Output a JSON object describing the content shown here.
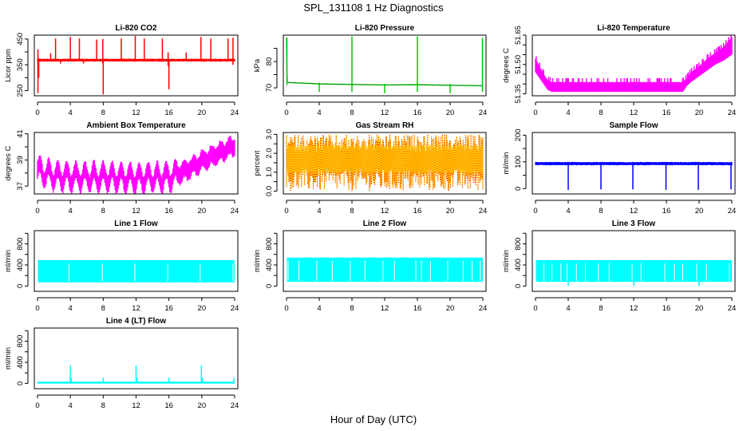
{
  "page": {
    "title": "SPL_131108  1 Hz Diagnostics",
    "xlabel": "Hour of Day (UTC)"
  },
  "chart_data": [
    {
      "id": "li820-co2",
      "type": "line",
      "title": "Li-820 CO2",
      "ylabel": "Licor ppm",
      "color": "#ff0000",
      "xlim": [
        0,
        24
      ],
      "xticks": [
        0,
        4,
        8,
        12,
        16,
        20,
        24
      ],
      "ylim": [
        230,
        465
      ],
      "yticks": [
        250,
        300,
        350,
        400,
        450
      ],
      "yticklabels": [
        "250",
        "",
        "350",
        "",
        "450"
      ],
      "baseline": 368,
      "band": [
        364,
        372
      ],
      "spikes": [
        {
          "x": 0.05,
          "lo": 240,
          "hi": 410
        },
        {
          "x": 0.15,
          "lo": 300,
          "hi": 375
        },
        {
          "x": 1.6,
          "lo": 368,
          "hi": 395
        },
        {
          "x": 2.2,
          "lo": 368,
          "hi": 452
        },
        {
          "x": 2.8,
          "lo": 355,
          "hi": 368
        },
        {
          "x": 4.0,
          "lo": 368,
          "hi": 458
        },
        {
          "x": 5.1,
          "lo": 368,
          "hi": 452
        },
        {
          "x": 5.6,
          "lo": 355,
          "hi": 368
        },
        {
          "x": 7.2,
          "lo": 368,
          "hi": 448
        },
        {
          "x": 7.95,
          "lo": 355,
          "hi": 450
        },
        {
          "x": 8.0,
          "lo": 235,
          "hi": 368
        },
        {
          "x": 10.2,
          "lo": 368,
          "hi": 452
        },
        {
          "x": 11.9,
          "lo": 368,
          "hi": 462
        },
        {
          "x": 13.0,
          "lo": 368,
          "hi": 452
        },
        {
          "x": 15.2,
          "lo": 368,
          "hi": 452
        },
        {
          "x": 15.9,
          "lo": 345,
          "hi": 398
        },
        {
          "x": 16.0,
          "lo": 255,
          "hi": 368
        },
        {
          "x": 18.1,
          "lo": 368,
          "hi": 398
        },
        {
          "x": 19.9,
          "lo": 368,
          "hi": 458
        },
        {
          "x": 21.1,
          "lo": 368,
          "hi": 452
        },
        {
          "x": 23.2,
          "lo": 368,
          "hi": 452
        },
        {
          "x": 23.8,
          "lo": 350,
          "hi": 455
        }
      ]
    },
    {
      "id": "li820-pressure",
      "type": "line",
      "title": "Li-820 Pressure",
      "ylabel": "kPa",
      "color": "#00cc00",
      "xlim": [
        0,
        24
      ],
      "xticks": [
        0,
        4,
        8,
        12,
        16,
        20,
        24
      ],
      "ylim": [
        67,
        90
      ],
      "yticks": [
        70,
        75,
        80,
        85
      ],
      "yticklabels": [
        "70",
        "",
        "80",
        ""
      ],
      "series": {
        "x": [
          0,
          0.05,
          0.1,
          0.3,
          2.0,
          4.0,
          8.0,
          12.0,
          16.0,
          20.0,
          24.0
        ],
        "y": [
          89,
          76,
          72.2,
          72.0,
          71.8,
          71.5,
          71.3,
          71.1,
          71.2,
          71.0,
          70.8
        ]
      },
      "spikes": [
        {
          "x": 0.05,
          "lo": 71,
          "hi": 89
        },
        {
          "x": 4.0,
          "lo": 68.5,
          "hi": 72
        },
        {
          "x": 8.0,
          "lo": 68.5,
          "hi": 89.5
        },
        {
          "x": 12.0,
          "lo": 68,
          "hi": 71.5
        },
        {
          "x": 16.0,
          "lo": 68.5,
          "hi": 89.5
        },
        {
          "x": 20.0,
          "lo": 68,
          "hi": 71.5
        },
        {
          "x": 23.95,
          "lo": 68.5,
          "hi": 89
        }
      ]
    },
    {
      "id": "li820-temperature",
      "type": "area",
      "title": "Li-820 Temperature",
      "ylabel": "degrees C",
      "color": "#ff00ff",
      "xlim": [
        0,
        24
      ],
      "xticks": [
        0,
        4,
        8,
        12,
        16,
        20,
        24
      ],
      "ylim": [
        51.34,
        51.65
      ],
      "yticks": [
        51.35,
        51.4,
        51.45,
        51.5,
        51.55,
        51.6,
        51.65
      ],
      "yticklabels": [
        "51.35",
        "",
        "",
        "51.50",
        "",
        "",
        "51.65"
      ],
      "band_x": [
        0,
        0.5,
        1.0,
        1.5,
        2.0,
        4,
        8,
        12,
        16,
        18,
        18.5,
        19,
        20,
        21,
        22,
        23,
        24
      ],
      "band_lo": [
        51.46,
        51.43,
        51.4,
        51.37,
        51.36,
        51.36,
        51.36,
        51.36,
        51.36,
        51.36,
        51.39,
        51.41,
        51.44,
        51.47,
        51.5,
        51.52,
        51.55
      ],
      "band_hi": [
        51.53,
        51.49,
        51.45,
        51.42,
        51.41,
        51.41,
        51.41,
        51.41,
        51.41,
        51.41,
        51.43,
        51.46,
        51.49,
        51.53,
        51.56,
        51.59,
        51.64
      ]
    },
    {
      "id": "ambient-box-temperature",
      "type": "area",
      "title": "Ambient Box Temperature",
      "ylabel": "degrees C",
      "color": "#ff00ff",
      "xlim": [
        0,
        24
      ],
      "xticks": [
        0,
        4,
        8,
        12,
        16,
        20,
        24
      ],
      "ylim": [
        36.4,
        41.1
      ],
      "yticks": [
        37,
        38,
        39,
        40,
        41
      ],
      "yticklabels": [
        "37",
        "",
        "39",
        "",
        "41"
      ],
      "trend_x": [
        0,
        2,
        4,
        8,
        12,
        16,
        17,
        18,
        19,
        20,
        21,
        22,
        23,
        24
      ],
      "trend_y": [
        38.2,
        37.8,
        37.7,
        37.7,
        37.6,
        37.7,
        37.9,
        38.2,
        38.5,
        38.9,
        39.2,
        39.5,
        39.8,
        40.1
      ],
      "oscillation_amplitude": 0.6,
      "oscillation_period_hours": 1.1,
      "noise_halfwidth": 0.55
    },
    {
      "id": "gas-stream-rh",
      "type": "area",
      "title": "Gas Stream RH",
      "ylabel": "percent",
      "color": "#ffcc00",
      "dot_color": "#ff0000",
      "xlim": [
        0,
        24
      ],
      "xticks": [
        0,
        4,
        8,
        12,
        16,
        20,
        24
      ],
      "ylim": [
        -0.15,
        3.1
      ],
      "yticks": [
        0,
        0.5,
        1,
        1.5,
        2,
        2.5,
        3
      ],
      "yticklabels": [
        "0.0",
        "",
        "1.0",
        "",
        "2.0",
        "",
        "3.0"
      ],
      "core_range": [
        1.0,
        2.4
      ],
      "full_range": [
        0.0,
        3.0
      ]
    },
    {
      "id": "sample-flow",
      "type": "line",
      "title": "Sample Flow",
      "ylabel": "ml/min",
      "color": "#0000ff",
      "xlim": [
        0,
        24
      ],
      "xticks": [
        0,
        4,
        8,
        12,
        16,
        20,
        24
      ],
      "ylim": [
        -20,
        210
      ],
      "yticks": [
        0,
        50,
        100,
        150,
        200
      ],
      "yticklabels": [
        "0",
        "",
        "100",
        "",
        "200"
      ],
      "baseline": 93,
      "band": [
        89,
        98
      ],
      "spikes": [
        {
          "x": 4.0,
          "lo": -5,
          "hi": 100
        },
        {
          "x": 8.0,
          "lo": -3,
          "hi": 98
        },
        {
          "x": 11.9,
          "lo": -3,
          "hi": 100
        },
        {
          "x": 15.95,
          "lo": -5,
          "hi": 98
        },
        {
          "x": 19.9,
          "lo": -5,
          "hi": 100
        },
        {
          "x": 23.9,
          "lo": -3,
          "hi": 98
        }
      ]
    },
    {
      "id": "line-1-flow",
      "type": "area",
      "title": "Line 1 Flow",
      "ylabel": "ml/min",
      "color": "#00ffff",
      "xlim": [
        0,
        24
      ],
      "xticks": [
        0,
        4,
        8,
        12,
        16,
        20,
        24
      ],
      "ylim": [
        -100,
        1050
      ],
      "yticks": [
        0,
        200,
        400,
        600,
        800,
        1000
      ],
      "yticklabels": [
        "0",
        "",
        "400",
        "",
        "800",
        ""
      ],
      "range": [
        70,
        490
      ],
      "gaps": [
        3.85,
        7.9,
        11.85,
        15.85,
        19.8,
        23.8
      ]
    },
    {
      "id": "line-2-flow",
      "type": "area",
      "title": "Line 2 Flow",
      "ylabel": "ml/min",
      "color": "#00ffff",
      "xlim": [
        0,
        24
      ],
      "xticks": [
        0,
        4,
        8,
        12,
        16,
        20,
        24
      ],
      "ylim": [
        -100,
        1050
      ],
      "yticks": [
        0,
        200,
        400,
        600,
        800,
        1000
      ],
      "yticklabels": [
        "0",
        "",
        "400",
        "",
        "800",
        ""
      ],
      "range": [
        80,
        540
      ],
      "gaps": [
        0.2,
        1.5,
        3.7,
        5.6,
        7.8,
        9.6,
        11.8,
        13.2,
        15.8,
        16.5,
        17.6,
        19.7,
        21.6,
        22.7,
        23.7
      ]
    },
    {
      "id": "line-3-flow",
      "type": "area",
      "title": "Line 3 Flow",
      "ylabel": "ml/min",
      "color": "#00ffff",
      "xlim": [
        0,
        24
      ],
      "xticks": [
        0,
        4,
        8,
        12,
        16,
        20,
        24
      ],
      "ylim": [
        -100,
        1050
      ],
      "yticks": [
        0,
        200,
        400,
        600,
        800,
        1000
      ],
      "yticklabels": [
        "0",
        "",
        "400",
        "",
        "800",
        ""
      ],
      "range": [
        80,
        490
      ],
      "gaps": [
        1.0,
        2.0,
        3.1,
        3.85,
        5.0,
        6.1,
        7.7,
        9.0,
        11.8,
        12.9,
        15.8,
        17.0,
        18.0,
        19.7,
        20.9,
        23.7
      ],
      "dips": [
        4.0,
        12.0,
        20.0
      ]
    },
    {
      "id": "line-4-lt-flow",
      "type": "line",
      "title": "Line 4 (LT) Flow",
      "ylabel": "ml/min",
      "color": "#00ffff",
      "xlim": [
        0,
        24
      ],
      "xticks": [
        0,
        4,
        8,
        12,
        16,
        20,
        24
      ],
      "ylim": [
        -100,
        1050
      ],
      "yticks": [
        0,
        200,
        400,
        600,
        800,
        1000
      ],
      "yticklabels": [
        "0",
        "",
        "400",
        "",
        "800",
        ""
      ],
      "baseline": 15,
      "spikes": [
        {
          "x": 4.0,
          "lo": 15,
          "hi": 340
        },
        {
          "x": 4.1,
          "lo": 15,
          "hi": 110
        },
        {
          "x": 8.0,
          "lo": 15,
          "hi": 110
        },
        {
          "x": 12.0,
          "lo": 15,
          "hi": 340
        },
        {
          "x": 12.1,
          "lo": 15,
          "hi": 110
        },
        {
          "x": 16.0,
          "lo": 15,
          "hi": 110
        },
        {
          "x": 19.95,
          "lo": 15,
          "hi": 340
        },
        {
          "x": 20.05,
          "lo": 15,
          "hi": 110
        },
        {
          "x": 23.9,
          "lo": 15,
          "hi": 110
        }
      ]
    }
  ]
}
